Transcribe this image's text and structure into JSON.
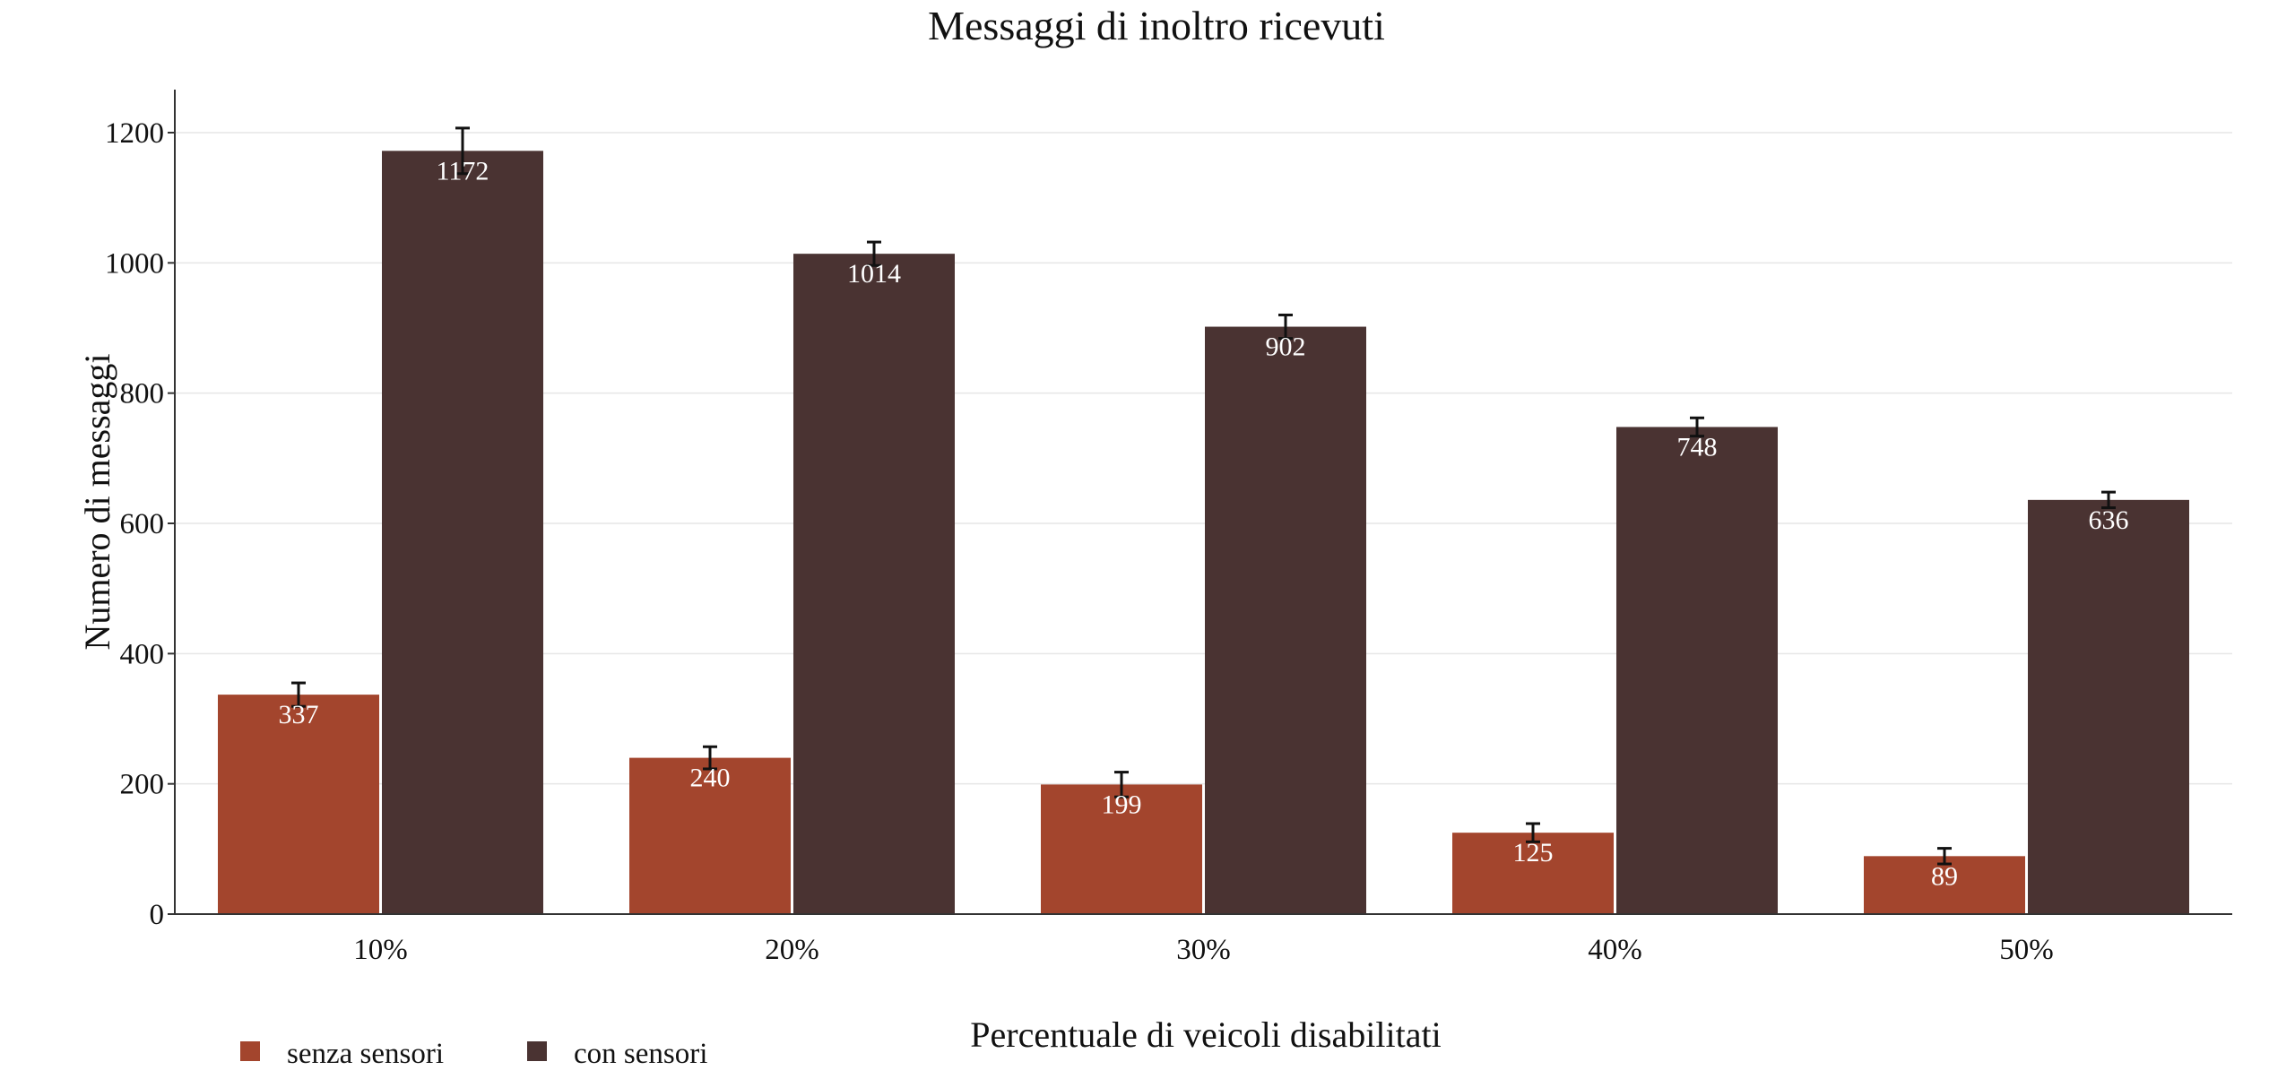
{
  "chart_data": {
    "type": "bar",
    "title": "Messaggi di inoltro ricevuti",
    "xlabel": "Percentuale di veicoli disabilitati",
    "ylabel": "Numero di messaggi",
    "categories": [
      "10%",
      "20%",
      "30%",
      "40%",
      "50%"
    ],
    "series": [
      {
        "name": "senza sensori",
        "values": [
          337,
          240,
          199,
          125,
          89
        ],
        "error": [
          18,
          17,
          19,
          14,
          12
        ],
        "color": "#a3452d"
      },
      {
        "name": "con sensori",
        "values": [
          1172,
          1014,
          902,
          748,
          636
        ],
        "error": [
          35,
          18,
          18,
          14,
          12
        ],
        "color": "#4a3332"
      }
    ],
    "ylim": [
      0,
      1200
    ],
    "yticks": [
      0,
      200,
      400,
      600,
      800,
      1000,
      1200
    ],
    "grid": true,
    "legend": "bottom-left",
    "data_labels": true
  }
}
